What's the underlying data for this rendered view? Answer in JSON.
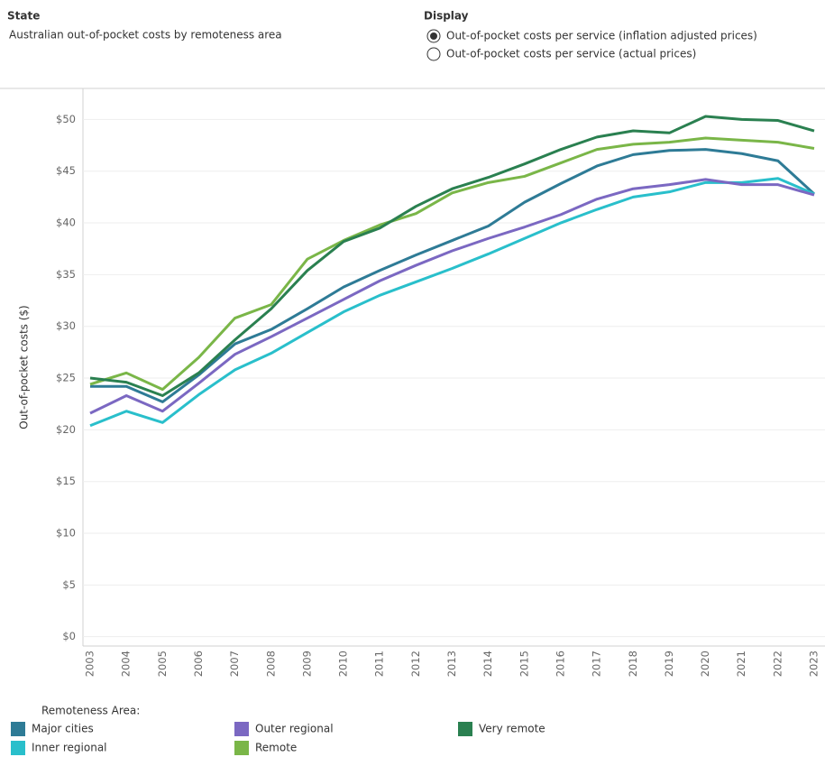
{
  "filter": {
    "label": "State",
    "value": "Australian out-of-pocket costs by remoteness area"
  },
  "display": {
    "label": "Display",
    "options": [
      "Out-of-pocket costs per service (inflation adjusted prices)",
      "Out-of-pocket costs per service (actual prices)"
    ],
    "selected": 0
  },
  "legend_title": "Remoteness Area:",
  "chart_data": {
    "type": "line",
    "y_label": "Out-of-pocket costs ($)",
    "categories": [
      "2003",
      "2004",
      "2005",
      "2006",
      "2007",
      "2008",
      "2009",
      "2010",
      "2011",
      "2012",
      "2013",
      "2014",
      "2015",
      "2016",
      "2017",
      "2018",
      "2019",
      "2020",
      "2021",
      "2022",
      "2023"
    ],
    "series": [
      {
        "name": "Major cities",
        "color": "#2e7b96",
        "values": [
          24.2,
          24.2,
          22.7,
          25.3,
          28.3,
          29.7,
          31.7,
          33.8,
          35.4,
          36.9,
          38.3,
          39.7,
          42.0,
          43.8,
          45.5,
          46.6,
          47.0,
          47.1,
          46.7,
          46.0,
          42.8
        ]
      },
      {
        "name": "Inner regional",
        "color": "#29bfcb",
        "values": [
          20.4,
          21.8,
          20.7,
          23.4,
          25.8,
          27.4,
          29.4,
          31.4,
          33.0,
          34.3,
          35.6,
          37.0,
          38.5,
          40.0,
          41.3,
          42.5,
          43.0,
          43.9,
          43.9,
          44.3,
          42.8
        ]
      },
      {
        "name": "Outer regional",
        "color": "#7b68c2",
        "values": [
          21.6,
          23.3,
          21.8,
          24.5,
          27.3,
          29.0,
          30.8,
          32.6,
          34.4,
          35.9,
          37.3,
          38.5,
          39.6,
          40.8,
          42.3,
          43.3,
          43.7,
          44.2,
          43.7,
          43.7,
          42.7
        ]
      },
      {
        "name": "Remote",
        "color": "#7ab648",
        "values": [
          24.4,
          25.5,
          23.9,
          27.0,
          30.8,
          32.1,
          36.5,
          38.3,
          39.8,
          40.9,
          42.9,
          43.9,
          44.5,
          45.8,
          47.1,
          47.6,
          47.8,
          48.2,
          48.0,
          47.8,
          47.2
        ]
      },
      {
        "name": "Very remote",
        "color": "#2a8050",
        "values": [
          25.0,
          24.6,
          23.3,
          25.5,
          28.7,
          31.7,
          35.4,
          38.2,
          39.5,
          41.6,
          43.3,
          44.4,
          45.7,
          47.1,
          48.3,
          48.9,
          48.7,
          50.3,
          50.0,
          49.9,
          48.9
        ]
      }
    ],
    "ylim": [
      -0.9,
      53
    ],
    "yticks": [
      {
        "value": 0,
        "label": "$0"
      },
      {
        "value": 5,
        "label": "$5"
      },
      {
        "value": 10,
        "label": "$10"
      },
      {
        "value": 15,
        "label": "$15"
      },
      {
        "value": 20,
        "label": "$20"
      },
      {
        "value": 25,
        "label": "$25"
      },
      {
        "value": 30,
        "label": "$30"
      },
      {
        "value": 35,
        "label": "$35"
      },
      {
        "value": 40,
        "label": "$40"
      },
      {
        "value": 45,
        "label": "$45"
      },
      {
        "value": 50,
        "label": "$50"
      }
    ],
    "grid": true
  }
}
